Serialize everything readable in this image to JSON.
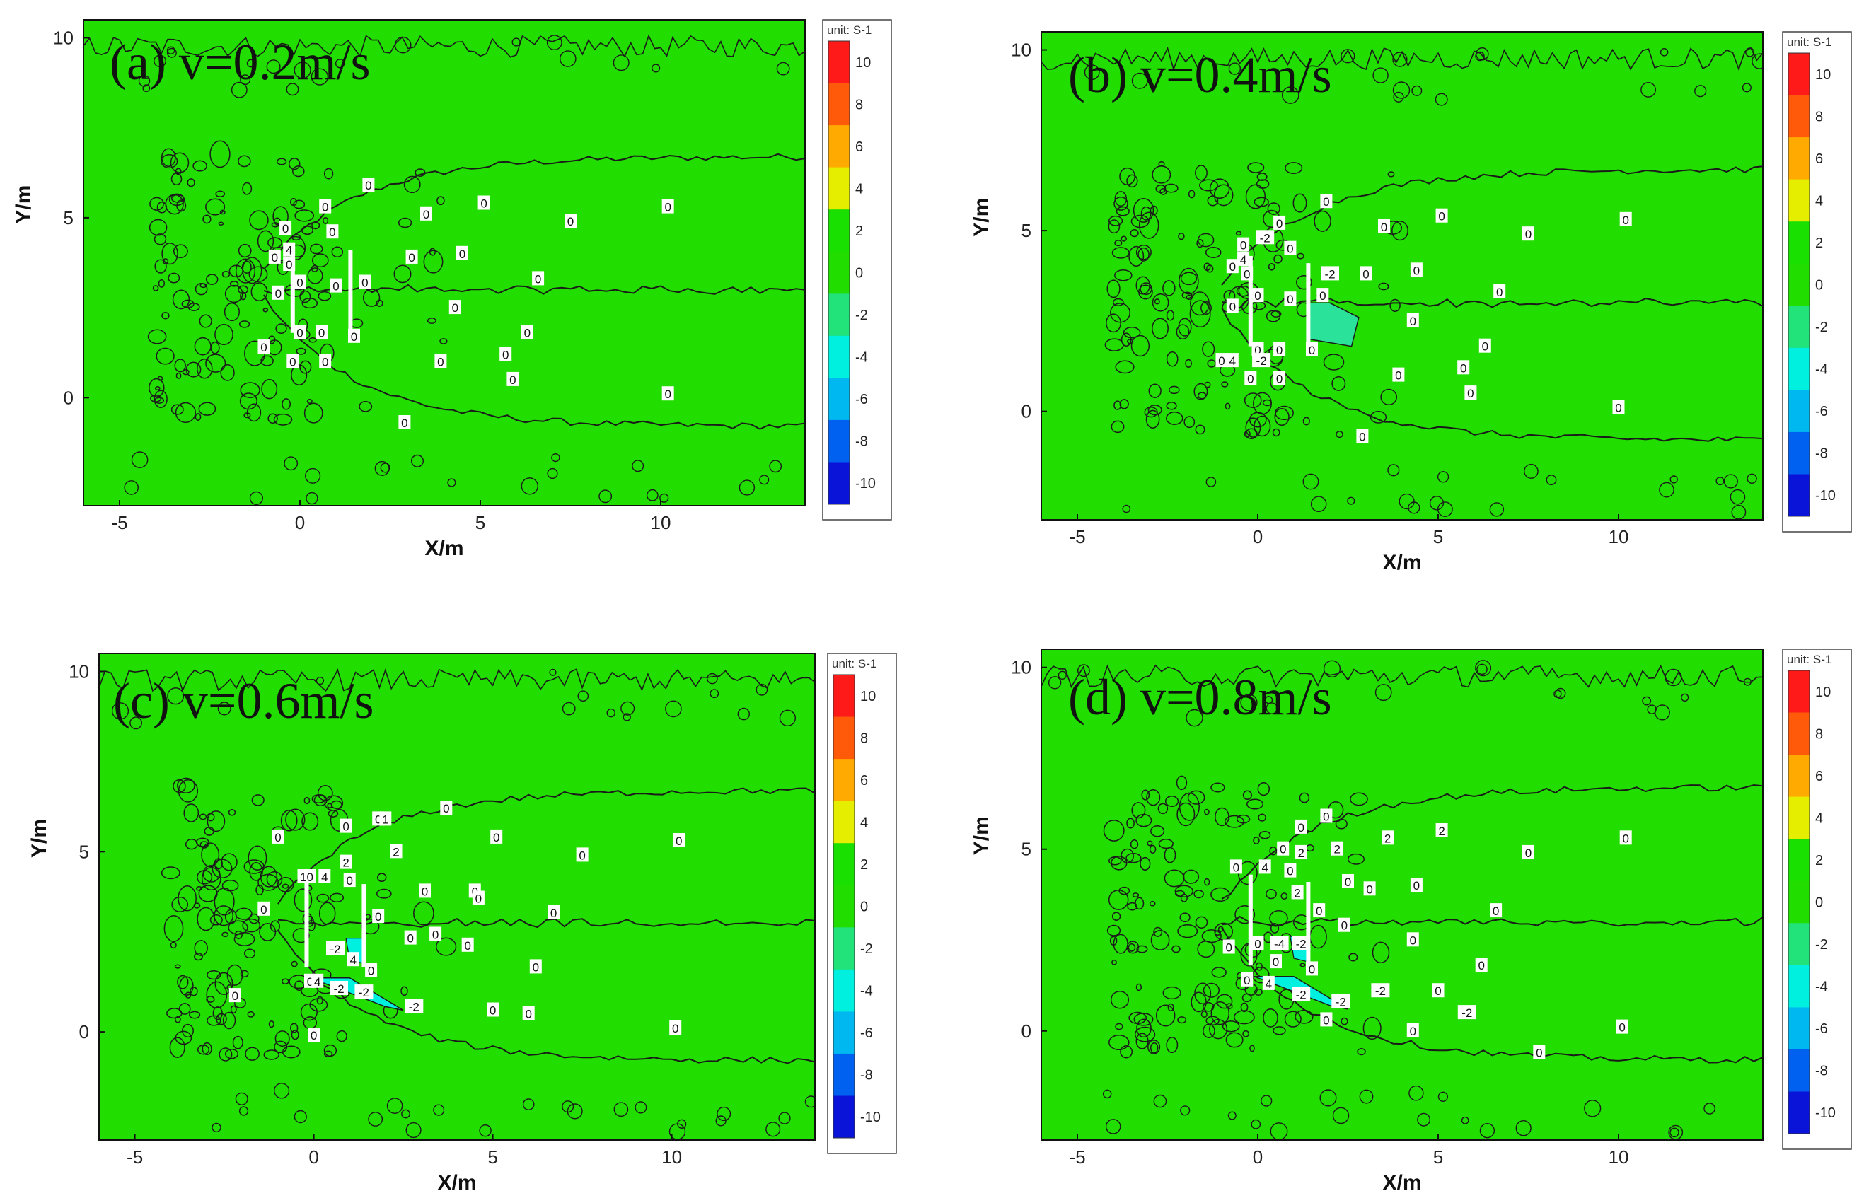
{
  "chart_data": [
    {
      "type": "heatmap",
      "panel": "(a)",
      "title": "v=0.2m/s",
      "xlabel": "X/m",
      "ylabel": "Y/m",
      "xlim": [
        -6,
        14
      ],
      "ylim": [
        -3,
        10.5
      ],
      "xticks": [
        -5,
        0,
        5,
        10
      ],
      "yticks": [
        0,
        5,
        10
      ],
      "colorbar": {
        "unit": "unit: S-1",
        "levels": [
          10,
          8,
          6,
          4,
          2,
          0,
          -2,
          -4,
          -6,
          -8,
          -10
        ]
      },
      "field_value": 0,
      "structures": [
        [
          -0.2,
          1.8,
          -0.2,
          4.3
        ],
        [
          1.4,
          1.8,
          1.4,
          4.1
        ]
      ],
      "contour_labels": [
        {
          "x": 1.9,
          "y": 5.9,
          "text": "0"
        },
        {
          "x": 0.7,
          "y": 5.3,
          "text": "0"
        },
        {
          "x": 3.5,
          "y": 5.1,
          "text": "0"
        },
        {
          "x": 5.1,
          "y": 5.4,
          "text": "0"
        },
        {
          "x": 7.5,
          "y": 4.9,
          "text": "0"
        },
        {
          "x": 10.2,
          "y": 5.3,
          "text": "0"
        },
        {
          "x": -0.4,
          "y": 4.7,
          "text": "0"
        },
        {
          "x": 0.9,
          "y": 4.6,
          "text": "0"
        },
        {
          "x": -0.3,
          "y": 4.1,
          "text": "4"
        },
        {
          "x": -0.7,
          "y": 3.9,
          "text": "0"
        },
        {
          "x": -0.3,
          "y": 3.7,
          "text": "0"
        },
        {
          "x": 3.1,
          "y": 3.9,
          "text": "0"
        },
        {
          "x": 4.5,
          "y": 4.0,
          "text": "0"
        },
        {
          "x": 0.0,
          "y": 3.2,
          "text": "0"
        },
        {
          "x": 1.0,
          "y": 3.1,
          "text": "0"
        },
        {
          "x": 1.8,
          "y": 3.2,
          "text": "0"
        },
        {
          "x": 6.6,
          "y": 3.3,
          "text": "0"
        },
        {
          "x": -0.6,
          "y": 2.9,
          "text": "0"
        },
        {
          "x": 4.3,
          "y": 2.5,
          "text": "0"
        },
        {
          "x": 0.0,
          "y": 1.8,
          "text": "0"
        },
        {
          "x": 0.6,
          "y": 1.8,
          "text": "0"
        },
        {
          "x": 1.5,
          "y": 1.7,
          "text": "0"
        },
        {
          "x": 6.3,
          "y": 1.8,
          "text": "0"
        },
        {
          "x": -1.0,
          "y": 1.4,
          "text": "0"
        },
        {
          "x": 3.9,
          "y": 1.0,
          "text": "0"
        },
        {
          "x": 5.7,
          "y": 1.2,
          "text": "0"
        },
        {
          "x": -0.2,
          "y": 1.0,
          "text": "0"
        },
        {
          "x": 0.7,
          "y": 1.0,
          "text": "0"
        },
        {
          "x": 5.9,
          "y": 0.5,
          "text": "0"
        },
        {
          "x": 10.2,
          "y": 0.1,
          "text": "0"
        },
        {
          "x": 2.9,
          "y": -0.7,
          "text": "0"
        }
      ]
    },
    {
      "type": "heatmap",
      "panel": "(b)",
      "title": "v=0.4m/s",
      "xlabel": "X/m",
      "ylabel": "Y/m",
      "xlim": [
        -6,
        14
      ],
      "ylim": [
        -3,
        10.5
      ],
      "xticks": [
        -5,
        0,
        5,
        10
      ],
      "yticks": [
        0,
        5,
        10
      ],
      "colorbar": {
        "unit": "unit: S-1",
        "levels": [
          10,
          8,
          6,
          4,
          2,
          0,
          -2,
          -4,
          -6,
          -8,
          -10
        ]
      },
      "field_value": 0,
      "structures": [
        [
          -0.2,
          1.8,
          -0.2,
          4.3
        ],
        [
          1.4,
          1.8,
          1.4,
          4.1
        ]
      ],
      "contour_labels": [
        {
          "x": 1.9,
          "y": 5.8,
          "text": "0"
        },
        {
          "x": 0.6,
          "y": 5.2,
          "text": "0"
        },
        {
          "x": 3.5,
          "y": 5.1,
          "text": "0"
        },
        {
          "x": 5.1,
          "y": 5.4,
          "text": "0"
        },
        {
          "x": 7.5,
          "y": 4.9,
          "text": "0"
        },
        {
          "x": 10.2,
          "y": 5.3,
          "text": "0"
        },
        {
          "x": 0.2,
          "y": 4.8,
          "text": "-2"
        },
        {
          "x": -0.4,
          "y": 4.6,
          "text": "0"
        },
        {
          "x": 0.9,
          "y": 4.5,
          "text": "0"
        },
        {
          "x": -0.4,
          "y": 4.2,
          "text": "4"
        },
        {
          "x": -0.7,
          "y": 4.0,
          "text": "0"
        },
        {
          "x": -0.3,
          "y": 3.8,
          "text": "0"
        },
        {
          "x": 2.0,
          "y": 3.8,
          "text": "-2"
        },
        {
          "x": 3.0,
          "y": 3.8,
          "text": "0"
        },
        {
          "x": 4.4,
          "y": 3.9,
          "text": "0"
        },
        {
          "x": 0.0,
          "y": 3.2,
          "text": "0"
        },
        {
          "x": 1.8,
          "y": 3.2,
          "text": "0"
        },
        {
          "x": 0.9,
          "y": 3.1,
          "text": "0"
        },
        {
          "x": 6.7,
          "y": 3.3,
          "text": "0"
        },
        {
          "x": -0.7,
          "y": 2.9,
          "text": "0"
        },
        {
          "x": 4.3,
          "y": 2.5,
          "text": "0"
        },
        {
          "x": 0.0,
          "y": 1.7,
          "text": "0"
        },
        {
          "x": 0.6,
          "y": 1.7,
          "text": "0"
        },
        {
          "x": 1.5,
          "y": 1.7,
          "text": "0"
        },
        {
          "x": 6.3,
          "y": 1.8,
          "text": "0"
        },
        {
          "x": -0.7,
          "y": 1.4,
          "text": "4"
        },
        {
          "x": 0.1,
          "y": 1.4,
          "text": "-2"
        },
        {
          "x": -1.0,
          "y": 1.4,
          "text": "0"
        },
        {
          "x": 3.9,
          "y": 1.0,
          "text": "0"
        },
        {
          "x": 5.7,
          "y": 1.2,
          "text": "0"
        },
        {
          "x": -0.2,
          "y": 0.9,
          "text": "0"
        },
        {
          "x": 0.6,
          "y": 0.9,
          "text": "0"
        },
        {
          "x": 5.9,
          "y": 0.5,
          "text": "0"
        },
        {
          "x": 10.0,
          "y": 0.1,
          "text": "0"
        },
        {
          "x": 2.9,
          "y": -0.7,
          "text": "0"
        }
      ]
    },
    {
      "type": "heatmap",
      "panel": "(c)",
      "title": "v=0.6m/s",
      "xlabel": "X/m",
      "ylabel": "Y/m",
      "xlim": [
        -6,
        14
      ],
      "ylim": [
        -3,
        10.5
      ],
      "xticks": [
        -5,
        0,
        5,
        10
      ],
      "yticks": [
        0,
        5,
        10
      ],
      "colorbar": {
        "unit": "unit: S-1",
        "levels": [
          10,
          8,
          6,
          4,
          2,
          0,
          -2,
          -4,
          -6,
          -8,
          -10
        ]
      },
      "field_value": 0,
      "structures": [
        [
          -0.2,
          1.8,
          -0.2,
          4.3
        ],
        [
          1.4,
          1.8,
          1.4,
          4.1
        ]
      ],
      "contour_labels": [
        {
          "x": 3.7,
          "y": 6.2,
          "text": "0"
        },
        {
          "x": 1.8,
          "y": 5.9,
          "text": "0"
        },
        {
          "x": 2.0,
          "y": 5.9,
          "text": "1"
        },
        {
          "x": 0.9,
          "y": 5.7,
          "text": "0"
        },
        {
          "x": 5.1,
          "y": 5.4,
          "text": "0"
        },
        {
          "x": 10.2,
          "y": 5.3,
          "text": "0"
        },
        {
          "x": -1.0,
          "y": 5.4,
          "text": "0"
        },
        {
          "x": 2.3,
          "y": 5.0,
          "text": "2"
        },
        {
          "x": 7.5,
          "y": 4.9,
          "text": "0"
        },
        {
          "x": 0.9,
          "y": 4.7,
          "text": "2"
        },
        {
          "x": -0.2,
          "y": 4.3,
          "text": "10"
        },
        {
          "x": 0.3,
          "y": 4.3,
          "text": "4"
        },
        {
          "x": 1.0,
          "y": 4.2,
          "text": "0"
        },
        {
          "x": 3.1,
          "y": 3.9,
          "text": "0"
        },
        {
          "x": 4.5,
          "y": 3.9,
          "text": "0"
        },
        {
          "x": 4.6,
          "y": 3.7,
          "text": "0"
        },
        {
          "x": -1.4,
          "y": 3.4,
          "text": "0"
        },
        {
          "x": 1.8,
          "y": 3.2,
          "text": "0"
        },
        {
          "x": 6.7,
          "y": 3.3,
          "text": "0"
        },
        {
          "x": 3.4,
          "y": 2.7,
          "text": "0"
        },
        {
          "x": 2.7,
          "y": 2.6,
          "text": "0"
        },
        {
          "x": 4.3,
          "y": 2.4,
          "text": "0"
        },
        {
          "x": 0.6,
          "y": 2.3,
          "text": "-2"
        },
        {
          "x": 1.1,
          "y": 2.0,
          "text": "4"
        },
        {
          "x": 6.2,
          "y": 1.8,
          "text": "0"
        },
        {
          "x": 1.6,
          "y": 1.7,
          "text": "0"
        },
        {
          "x": -0.1,
          "y": 1.4,
          "text": "0"
        },
        {
          "x": 0.1,
          "y": 1.4,
          "text": "4"
        },
        {
          "x": 0.7,
          "y": 1.2,
          "text": "-2"
        },
        {
          "x": 1.4,
          "y": 1.1,
          "text": "-2"
        },
        {
          "x": -2.2,
          "y": 1.0,
          "text": "0"
        },
        {
          "x": 2.8,
          "y": 0.7,
          "text": "-2"
        },
        {
          "x": 5.0,
          "y": 0.6,
          "text": "0"
        },
        {
          "x": 6.0,
          "y": 0.5,
          "text": "0"
        },
        {
          "x": 10.1,
          "y": 0.1,
          "text": "0"
        },
        {
          "x": 0.0,
          "y": -0.1,
          "text": "0"
        }
      ]
    },
    {
      "type": "heatmap",
      "panel": "(d)",
      "title": "v=0.8m/s",
      "xlabel": "X/m",
      "ylabel": "Y/m",
      "xlim": [
        -6,
        14
      ],
      "ylim": [
        -3,
        10.5
      ],
      "xticks": [
        -5,
        0,
        5,
        10
      ],
      "yticks": [
        0,
        5,
        10
      ],
      "colorbar": {
        "unit": "unit: S-1",
        "levels": [
          10,
          8,
          6,
          4,
          2,
          0,
          -2,
          -4,
          -6,
          -8,
          -10
        ]
      },
      "field_value": 0,
      "structures": [
        [
          -0.2,
          1.8,
          -0.2,
          4.3
        ],
        [
          1.4,
          1.8,
          1.4,
          4.1
        ]
      ],
      "contour_labels": [
        {
          "x": 1.9,
          "y": 5.9,
          "text": "0"
        },
        {
          "x": 1.2,
          "y": 5.6,
          "text": "0"
        },
        {
          "x": 3.6,
          "y": 5.3,
          "text": "2"
        },
        {
          "x": 5.1,
          "y": 5.5,
          "text": "2"
        },
        {
          "x": 7.5,
          "y": 4.9,
          "text": "0"
        },
        {
          "x": 10.2,
          "y": 5.3,
          "text": "0"
        },
        {
          "x": 0.7,
          "y": 5.0,
          "text": "0"
        },
        {
          "x": 1.2,
          "y": 4.9,
          "text": "2"
        },
        {
          "x": 2.2,
          "y": 5.0,
          "text": "2"
        },
        {
          "x": -0.6,
          "y": 4.5,
          "text": "0"
        },
        {
          "x": 0.2,
          "y": 4.5,
          "text": "4"
        },
        {
          "x": 0.9,
          "y": 4.4,
          "text": "0"
        },
        {
          "x": 2.5,
          "y": 4.1,
          "text": "0"
        },
        {
          "x": 3.1,
          "y": 3.9,
          "text": "0"
        },
        {
          "x": 4.4,
          "y": 4.0,
          "text": "0"
        },
        {
          "x": 1.1,
          "y": 3.8,
          "text": "2"
        },
        {
          "x": 1.7,
          "y": 3.3,
          "text": "0"
        },
        {
          "x": 6.6,
          "y": 3.3,
          "text": "0"
        },
        {
          "x": 2.4,
          "y": 2.9,
          "text": "0"
        },
        {
          "x": 4.3,
          "y": 2.5,
          "text": "0"
        },
        {
          "x": -0.8,
          "y": 2.3,
          "text": "0"
        },
        {
          "x": 0.0,
          "y": 2.4,
          "text": "0"
        },
        {
          "x": 0.6,
          "y": 2.4,
          "text": "-4"
        },
        {
          "x": 1.2,
          "y": 2.4,
          "text": "-2"
        },
        {
          "x": 0.5,
          "y": 1.9,
          "text": "0"
        },
        {
          "x": 1.5,
          "y": 1.7,
          "text": "0"
        },
        {
          "x": 6.2,
          "y": 1.8,
          "text": "0"
        },
        {
          "x": -0.3,
          "y": 1.4,
          "text": "0"
        },
        {
          "x": 0.3,
          "y": 1.3,
          "text": "4"
        },
        {
          "x": 1.2,
          "y": 1.0,
          "text": "-2"
        },
        {
          "x": 2.3,
          "y": 0.8,
          "text": "-2"
        },
        {
          "x": 3.4,
          "y": 1.1,
          "text": "-2"
        },
        {
          "x": 5.0,
          "y": 1.1,
          "text": "0"
        },
        {
          "x": 5.8,
          "y": 0.5,
          "text": "-2"
        },
        {
          "x": 1.9,
          "y": 0.3,
          "text": "0"
        },
        {
          "x": 4.3,
          "y": 0.0,
          "text": "0"
        },
        {
          "x": 10.1,
          "y": 0.1,
          "text": "0"
        },
        {
          "x": 7.8,
          "y": -0.6,
          "text": "0"
        }
      ]
    }
  ],
  "colors": {
    "field": "#22dd00",
    "contour": "#1a1a1a",
    "structure": "#ffffff",
    "negative_patch": "#2ae29a",
    "colorbar_bands": [
      "#ff1a1a",
      "#ff5a0a",
      "#ffaa00",
      "#e6ee00",
      "#19e000",
      "#22dd00",
      "#22e27a",
      "#00f0e0",
      "#00b8f0",
      "#0060f0",
      "#0a14d8"
    ]
  }
}
